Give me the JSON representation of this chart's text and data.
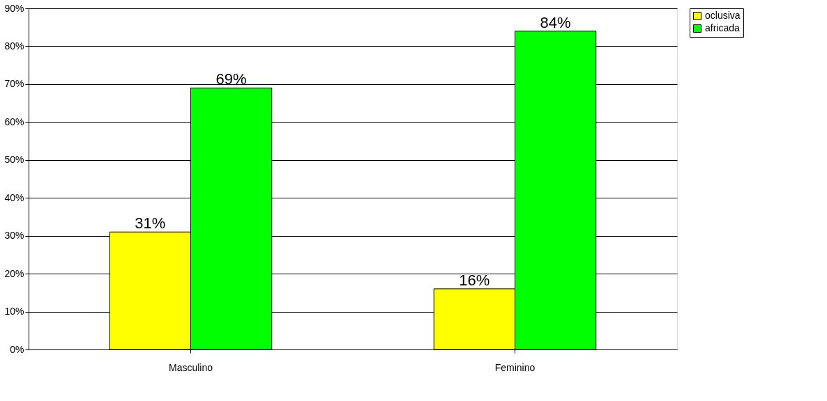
{
  "chart_data": {
    "type": "bar",
    "categories": [
      "Masculino",
      "Feminino"
    ],
    "series": [
      {
        "name": "oclusiva",
        "color": "#ffff00",
        "values": [
          31,
          16
        ],
        "value_labels": [
          "31%",
          "16%"
        ]
      },
      {
        "name": "africada",
        "color": "#00ff00",
        "values": [
          69,
          84
        ],
        "value_labels": [
          "69%",
          "84%"
        ]
      }
    ],
    "ylim": [
      0,
      90
    ],
    "yticks": [
      {
        "value": 0,
        "label": "0%"
      },
      {
        "value": 10,
        "label": "10%"
      },
      {
        "value": 20,
        "label": "20%"
      },
      {
        "value": 30,
        "label": "30%"
      },
      {
        "value": 40,
        "label": "40%"
      },
      {
        "value": 50,
        "label": "50%"
      },
      {
        "value": 60,
        "label": "60%"
      },
      {
        "value": 70,
        "label": "70%"
      },
      {
        "value": 80,
        "label": "80%"
      },
      {
        "value": 90,
        "label": "90%"
      }
    ],
    "grid": "y",
    "legend": "right"
  }
}
